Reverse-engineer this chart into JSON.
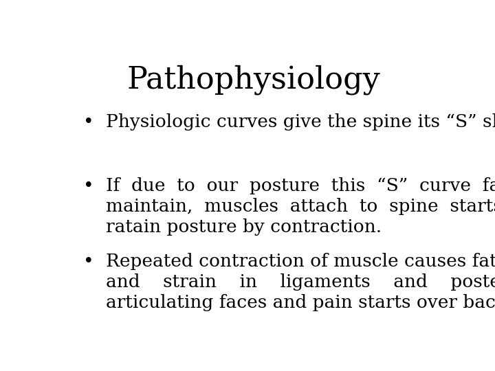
{
  "title": "Pathophysiology",
  "background_color": "#ffffff",
  "text_color": "#000000",
  "title_fontsize": 32,
  "body_fontsize": 19,
  "font_family": "DejaVu Serif",
  "bullets": [
    {
      "lines": [
        "Physiologic curves give the spine its “S” shape."
      ]
    },
    {
      "lines": [
        "If  due  to  our  posture  this  “S”  curve  fails  to",
        "maintain,  muscles  attach  to  spine  starts  to",
        "ratain posture by contraction."
      ]
    },
    {
      "lines": [
        "Repeated contraction of muscle causes fatigue",
        "and    strain    in    ligaments    and    posterior",
        "articulating faces and pain starts over back."
      ]
    }
  ]
}
